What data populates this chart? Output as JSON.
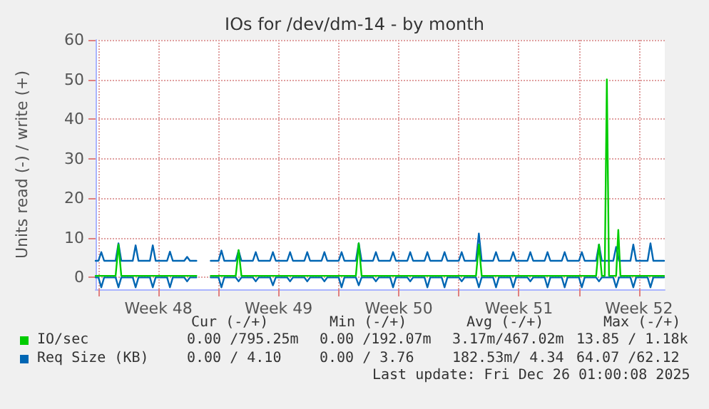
{
  "chart_data": {
    "type": "line",
    "title": "IOs for /dev/dm-14 - by month",
    "ylabel": "Units read (-) / write (+)",
    "x": [
      "2025-11-23T20:00",
      "2025-11-24T00:00",
      "2025-11-24T04:00",
      "2025-11-24T08:00",
      "2025-11-25T00:00",
      "2025-11-25T04:00",
      "2025-11-25T08:00",
      "2025-11-26T00:00",
      "2025-11-26T04:00",
      "2025-11-26T08:00",
      "2025-11-27T00:00",
      "2025-11-27T04:00",
      "2025-11-27T08:00",
      "2025-11-28T00:00",
      "2025-11-28T04:00",
      "2025-11-28T08:00",
      "2025-11-29T00:00",
      "2025-11-29T04:00",
      "2025-11-29T08:00",
      "2025-11-29T17:00",
      "2025-11-30T04:00",
      "2025-11-30T13:00",
      "2025-12-01T00:00",
      "2025-12-01T04:00",
      "2025-12-01T08:00",
      "2025-12-02T00:00",
      "2025-12-02T04:00",
      "2025-12-02T08:00",
      "2025-12-03T00:00",
      "2025-12-03T04:00",
      "2025-12-03T08:00",
      "2025-12-04T00:00",
      "2025-12-04T04:00",
      "2025-12-04T08:00",
      "2025-12-05T00:00",
      "2025-12-05T04:00",
      "2025-12-05T08:00",
      "2025-12-06T00:00",
      "2025-12-06T04:00",
      "2025-12-06T08:00",
      "2025-12-07T00:00",
      "2025-12-07T04:00",
      "2025-12-07T08:00",
      "2025-12-08T00:00",
      "2025-12-08T04:00",
      "2025-12-08T08:00",
      "2025-12-09T00:00",
      "2025-12-09T04:00",
      "2025-12-09T08:00",
      "2025-12-10T00:00",
      "2025-12-10T04:00",
      "2025-12-10T08:00",
      "2025-12-11T00:00",
      "2025-12-11T04:00",
      "2025-12-11T08:00",
      "2025-12-12T00:00",
      "2025-12-12T04:00",
      "2025-12-12T08:00",
      "2025-12-13T00:00",
      "2025-12-13T04:00",
      "2025-12-13T08:00",
      "2025-12-14T00:00",
      "2025-12-14T04:00",
      "2025-12-14T08:00",
      "2025-12-15T00:00",
      "2025-12-15T04:00",
      "2025-12-15T08:00",
      "2025-12-16T00:00",
      "2025-12-16T04:00",
      "2025-12-16T08:00",
      "2025-12-17T00:00",
      "2025-12-17T04:00",
      "2025-12-17T08:00",
      "2025-12-18T00:00",
      "2025-12-18T04:00",
      "2025-12-18T08:00",
      "2025-12-19T00:00",
      "2025-12-19T04:00",
      "2025-12-19T08:00",
      "2025-12-20T00:00",
      "2025-12-20T04:00",
      "2025-12-20T08:00",
      "2025-12-21T00:00",
      "2025-12-21T04:00",
      "2025-12-21T08:00",
      "2025-12-22T00:00",
      "2025-12-22T04:00",
      "2025-12-22T08:00",
      "2025-12-23T00:00",
      "2025-12-23T04:00",
      "2025-12-23T08:00",
      "2025-12-24T00:00",
      "2025-12-24T04:00",
      "2025-12-24T08:00",
      "2025-12-25T00:00",
      "2025-12-25T04:00",
      "2025-12-25T08:00",
      "2025-12-26T00:00",
      "2025-12-26T04:00",
      "2025-12-26T08:00",
      "2025-12-26T23:00"
    ],
    "series": [
      {
        "color": "#0066b3",
        "values": [
          0,
          0,
          -2.5,
          0,
          0,
          -2.5,
          0,
          0,
          -2.5,
          0,
          0,
          -2.5,
          0,
          0,
          -2.5,
          0,
          0,
          -1,
          0,
          0,
          null,
          0,
          0,
          -2.5,
          0,
          0,
          -1,
          0,
          0,
          -1,
          0,
          0,
          -2,
          0,
          0,
          -1,
          0,
          0,
          -1,
          0,
          0,
          -1,
          0,
          0,
          -2.5,
          0,
          0,
          -2,
          0,
          0,
          -1,
          0,
          0,
          -2.5,
          0,
          0,
          -1,
          0,
          0,
          -2.5,
          0,
          0,
          -2.5,
          0,
          0,
          -1,
          0,
          0,
          -2.5,
          0,
          0,
          -2.5,
          0,
          0,
          -2.5,
          0,
          0,
          -1,
          0,
          0,
          -2.5,
          0,
          0,
          -2.5,
          0,
          0,
          -2.5,
          0,
          0,
          -1,
          0,
          0,
          -2.5,
          0,
          0,
          -2.5,
          0,
          0,
          -2.5,
          0,
          0
        ]
      },
      {
        "name": "Req Size (KB)",
        "color": "#0066b3",
        "values": [
          4.2,
          4.2,
          6.4,
          4.2,
          4.2,
          8.6,
          4.2,
          4.2,
          8.1,
          4.2,
          4.2,
          8.1,
          4.2,
          4.2,
          6.5,
          4.2,
          4.2,
          5.2,
          4.2,
          4.2,
          null,
          4.2,
          4.2,
          6.8,
          4.2,
          4.2,
          6.8,
          4.2,
          4.2,
          6.4,
          4.2,
          4.2,
          6.4,
          4.2,
          4.2,
          6.4,
          4.2,
          4.2,
          6.4,
          4.2,
          4.2,
          6.4,
          4.2,
          4.2,
          6.4,
          4.2,
          4.2,
          8.6,
          4.2,
          4.2,
          6.4,
          4.2,
          4.2,
          6.4,
          4.2,
          4.2,
          6.4,
          4.2,
          4.2,
          6.4,
          4.2,
          4.2,
          6.4,
          4.2,
          4.2,
          6.4,
          4.2,
          4.2,
          11.1,
          4.2,
          4.2,
          6.4,
          4.2,
          4.2,
          6.4,
          4.2,
          4.2,
          6.4,
          4.2,
          4.2,
          6.4,
          4.2,
          4.2,
          6.4,
          4.2,
          4.2,
          6.4,
          4.2,
          4.2,
          8.3,
          4.2,
          4.2,
          7.7,
          4.2,
          4.2,
          8.3,
          4.2,
          4.2,
          8.6,
          4.2,
          4.2
        ]
      },
      {
        "name": "IO/sec",
        "color": "#00cc00",
        "x": [
          "2025-11-23T20:00",
          "2025-11-25T00:00",
          "2025-11-25T04:00",
          "2025-11-25T08:00",
          "2025-11-29T17:00",
          "2025-11-30T04:00",
          "2025-11-30T13:00",
          "2025-12-02T00:00",
          "2025-12-02T04:00",
          "2025-12-02T08:00",
          "2025-12-09T00:00",
          "2025-12-09T04:00",
          "2025-12-09T08:00",
          "2025-12-16T00:00",
          "2025-12-16T04:00",
          "2025-12-16T08:00",
          "2025-12-23T00:00",
          "2025-12-23T04:00",
          "2025-12-23T08:00",
          "2025-12-23T12:00",
          "2025-12-23T15:00",
          "2025-12-23T18:00",
          "2025-12-24T04:00",
          "2025-12-24T07:00",
          "2025-12-24T10:00",
          "2025-12-26T23:00"
        ],
        "values": [
          0.4,
          0.4,
          8.3,
          0.4,
          0.4,
          null,
          0.4,
          0.4,
          6.9,
          0.4,
          0.4,
          8.6,
          0.4,
          0.4,
          8.3,
          0.4,
          0.4,
          8.3,
          0.4,
          0.4,
          50,
          0.4,
          0.4,
          12,
          0.4,
          0.4
        ]
      }
    ],
    "xlim": [
      "2025-11-23T20:00",
      "2025-12-27T00:00"
    ],
    "xticks": [
      {
        "value": "2025-11-24T00:00",
        "label": null
      },
      {
        "value": "2025-11-27T12:00",
        "label": "Week 48"
      },
      {
        "value": "2025-12-01T00:00",
        "label": null
      },
      {
        "value": "2025-12-04T12:00",
        "label": "Week 49"
      },
      {
        "value": "2025-12-08T00:00",
        "label": null
      },
      {
        "value": "2025-12-11T12:00",
        "label": "Week 50"
      },
      {
        "value": "2025-12-15T00:00",
        "label": null
      },
      {
        "value": "2025-12-18T12:00",
        "label": "Week 51"
      },
      {
        "value": "2025-12-22T00:00",
        "label": null
      },
      {
        "value": "2025-12-25T12:00",
        "label": "Week 52"
      }
    ],
    "ylim": [
      -3,
      60
    ],
    "yticks": [
      0,
      10,
      20,
      30,
      40,
      50,
      60
    ],
    "grid": true,
    "legend": "bottom",
    "annotations": [
      "Cur (-/+)",
      "Min (-/+)",
      "Avg (-/+)",
      "Max (-/+)",
      "0.00 /795.25m",
      "0.00 /192.07m",
      "3.17m/467.02m",
      "13.85 / 1.18k",
      "0.00 / 4.10",
      "0.00 / 3.76",
      "182.53m/ 4.34",
      "64.07 /62.12",
      "Last update: Fri Dec 26 01:00:08 2025"
    ]
  }
}
